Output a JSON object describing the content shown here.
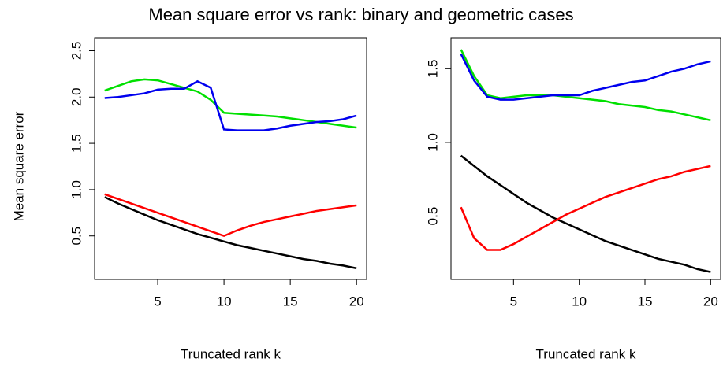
{
  "title": "Mean square error vs rank: binary and geometric cases",
  "chart_data": [
    {
      "type": "line",
      "xlabel": "Truncated rank k",
      "ylabel": "Mean square error",
      "x": [
        1,
        2,
        3,
        4,
        5,
        6,
        7,
        8,
        9,
        10,
        11,
        12,
        13,
        14,
        15,
        16,
        17,
        18,
        19,
        20
      ],
      "xlim": [
        0.24,
        20.76
      ],
      "xticks": [
        5,
        10,
        15,
        20
      ],
      "ylim": [
        0.03,
        2.64
      ],
      "yticks": [
        {
          "value": 0.5,
          "label": "0.5"
        },
        {
          "value": 1.0,
          "label": "1.0"
        },
        {
          "value": 1.5,
          "label": "1.5"
        },
        {
          "value": 2.0,
          "label": "2.0"
        },
        {
          "value": 2.5,
          "label": "2.5"
        }
      ],
      "series": [
        {
          "color": "#000000",
          "values": [
            0.92,
            0.85,
            0.79,
            0.73,
            0.67,
            0.62,
            0.57,
            0.52,
            0.48,
            0.44,
            0.4,
            0.37,
            0.34,
            0.31,
            0.28,
            0.25,
            0.23,
            0.2,
            0.18,
            0.15
          ]
        },
        {
          "color": "#ff0000",
          "values": [
            0.95,
            0.9,
            0.85,
            0.8,
            0.75,
            0.7,
            0.65,
            0.6,
            0.55,
            0.5,
            0.56,
            0.61,
            0.65,
            0.68,
            0.71,
            0.74,
            0.77,
            0.79,
            0.81,
            0.83
          ]
        },
        {
          "color": "#00e000",
          "values": [
            2.07,
            2.12,
            2.17,
            2.19,
            2.18,
            2.14,
            2.1,
            2.06,
            1.97,
            1.83,
            1.82,
            1.81,
            1.8,
            1.79,
            1.77,
            1.75,
            1.73,
            1.71,
            1.69,
            1.67
          ]
        },
        {
          "color": "#0000ee",
          "values": [
            1.99,
            2.0,
            2.02,
            2.04,
            2.08,
            2.09,
            2.09,
            2.17,
            2.1,
            1.65,
            1.64,
            1.64,
            1.64,
            1.66,
            1.69,
            1.71,
            1.73,
            1.74,
            1.76,
            1.8
          ]
        }
      ]
    },
    {
      "type": "line",
      "xlabel": "Truncated rank k",
      "x": [
        1,
        2,
        3,
        4,
        5,
        6,
        7,
        8,
        9,
        10,
        11,
        12,
        13,
        14,
        15,
        16,
        17,
        18,
        19,
        20
      ],
      "xlim": [
        0.24,
        20.76
      ],
      "xticks": [
        5,
        10,
        15,
        20
      ],
      "ylim": [
        0.07,
        1.71
      ],
      "yticks": [
        {
          "value": 0.5,
          "label": "0.5"
        },
        {
          "value": 1.0,
          "label": "1.0"
        },
        {
          "value": 1.5,
          "label": "1.5"
        }
      ],
      "series": [
        {
          "color": "#000000",
          "values": [
            0.91,
            0.84,
            0.77,
            0.71,
            0.65,
            0.59,
            0.54,
            0.49,
            0.45,
            0.41,
            0.37,
            0.33,
            0.3,
            0.27,
            0.24,
            0.21,
            0.19,
            0.17,
            0.14,
            0.12
          ]
        },
        {
          "color": "#ff0000",
          "values": [
            0.56,
            0.35,
            0.27,
            0.27,
            0.31,
            0.36,
            0.41,
            0.46,
            0.51,
            0.55,
            0.59,
            0.63,
            0.66,
            0.69,
            0.72,
            0.75,
            0.77,
            0.8,
            0.82,
            0.84
          ]
        },
        {
          "color": "#00e000",
          "values": [
            1.63,
            1.45,
            1.32,
            1.3,
            1.31,
            1.32,
            1.32,
            1.32,
            1.31,
            1.3,
            1.29,
            1.28,
            1.26,
            1.25,
            1.24,
            1.22,
            1.21,
            1.19,
            1.17,
            1.15
          ]
        },
        {
          "color": "#0000ee",
          "values": [
            1.6,
            1.42,
            1.31,
            1.29,
            1.29,
            1.3,
            1.31,
            1.32,
            1.32,
            1.32,
            1.35,
            1.37,
            1.39,
            1.41,
            1.42,
            1.45,
            1.48,
            1.5,
            1.53,
            1.55
          ]
        }
      ]
    }
  ]
}
